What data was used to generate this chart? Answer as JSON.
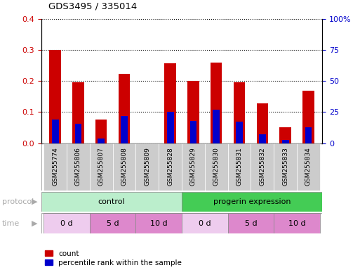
{
  "title": "GDS3495 / 335014",
  "samples": [
    "GSM255774",
    "GSM255806",
    "GSM255807",
    "GSM255808",
    "GSM255809",
    "GSM255828",
    "GSM255829",
    "GSM255830",
    "GSM255831",
    "GSM255832",
    "GSM255833",
    "GSM255834"
  ],
  "red_values": [
    0.3,
    0.195,
    0.075,
    0.222,
    0.0,
    0.258,
    0.2,
    0.26,
    0.195,
    0.127,
    0.05,
    0.168
  ],
  "blue_values": [
    0.075,
    0.063,
    0.015,
    0.088,
    0.0,
    0.1,
    0.072,
    0.107,
    0.07,
    0.028,
    0.01,
    0.05
  ],
  "ylim": [
    0,
    0.4
  ],
  "yticks_left": [
    0,
    0.1,
    0.2,
    0.3,
    0.4
  ],
  "ylabel_right_labels": [
    "0",
    "25",
    "50",
    "75",
    "100%"
  ],
  "left_color": "#cc0000",
  "right_color": "#0000cc",
  "bar_width": 0.5,
  "blue_bar_width": 0.3,
  "legend_red": "count",
  "legend_blue": "percentile rank within the sample",
  "background_color": "#ffffff",
  "tick_label_color_left": "#cc0000",
  "tick_label_color_right": "#0000cc",
  "protocol_ctrl_color": "#bbeecc",
  "protocol_prog_color": "#44cc55",
  "time_white_color": "#eeccee",
  "time_pink_color": "#dd88cc",
  "label_gray_color": "#aaaaaa",
  "sample_box_color": "#cccccc"
}
